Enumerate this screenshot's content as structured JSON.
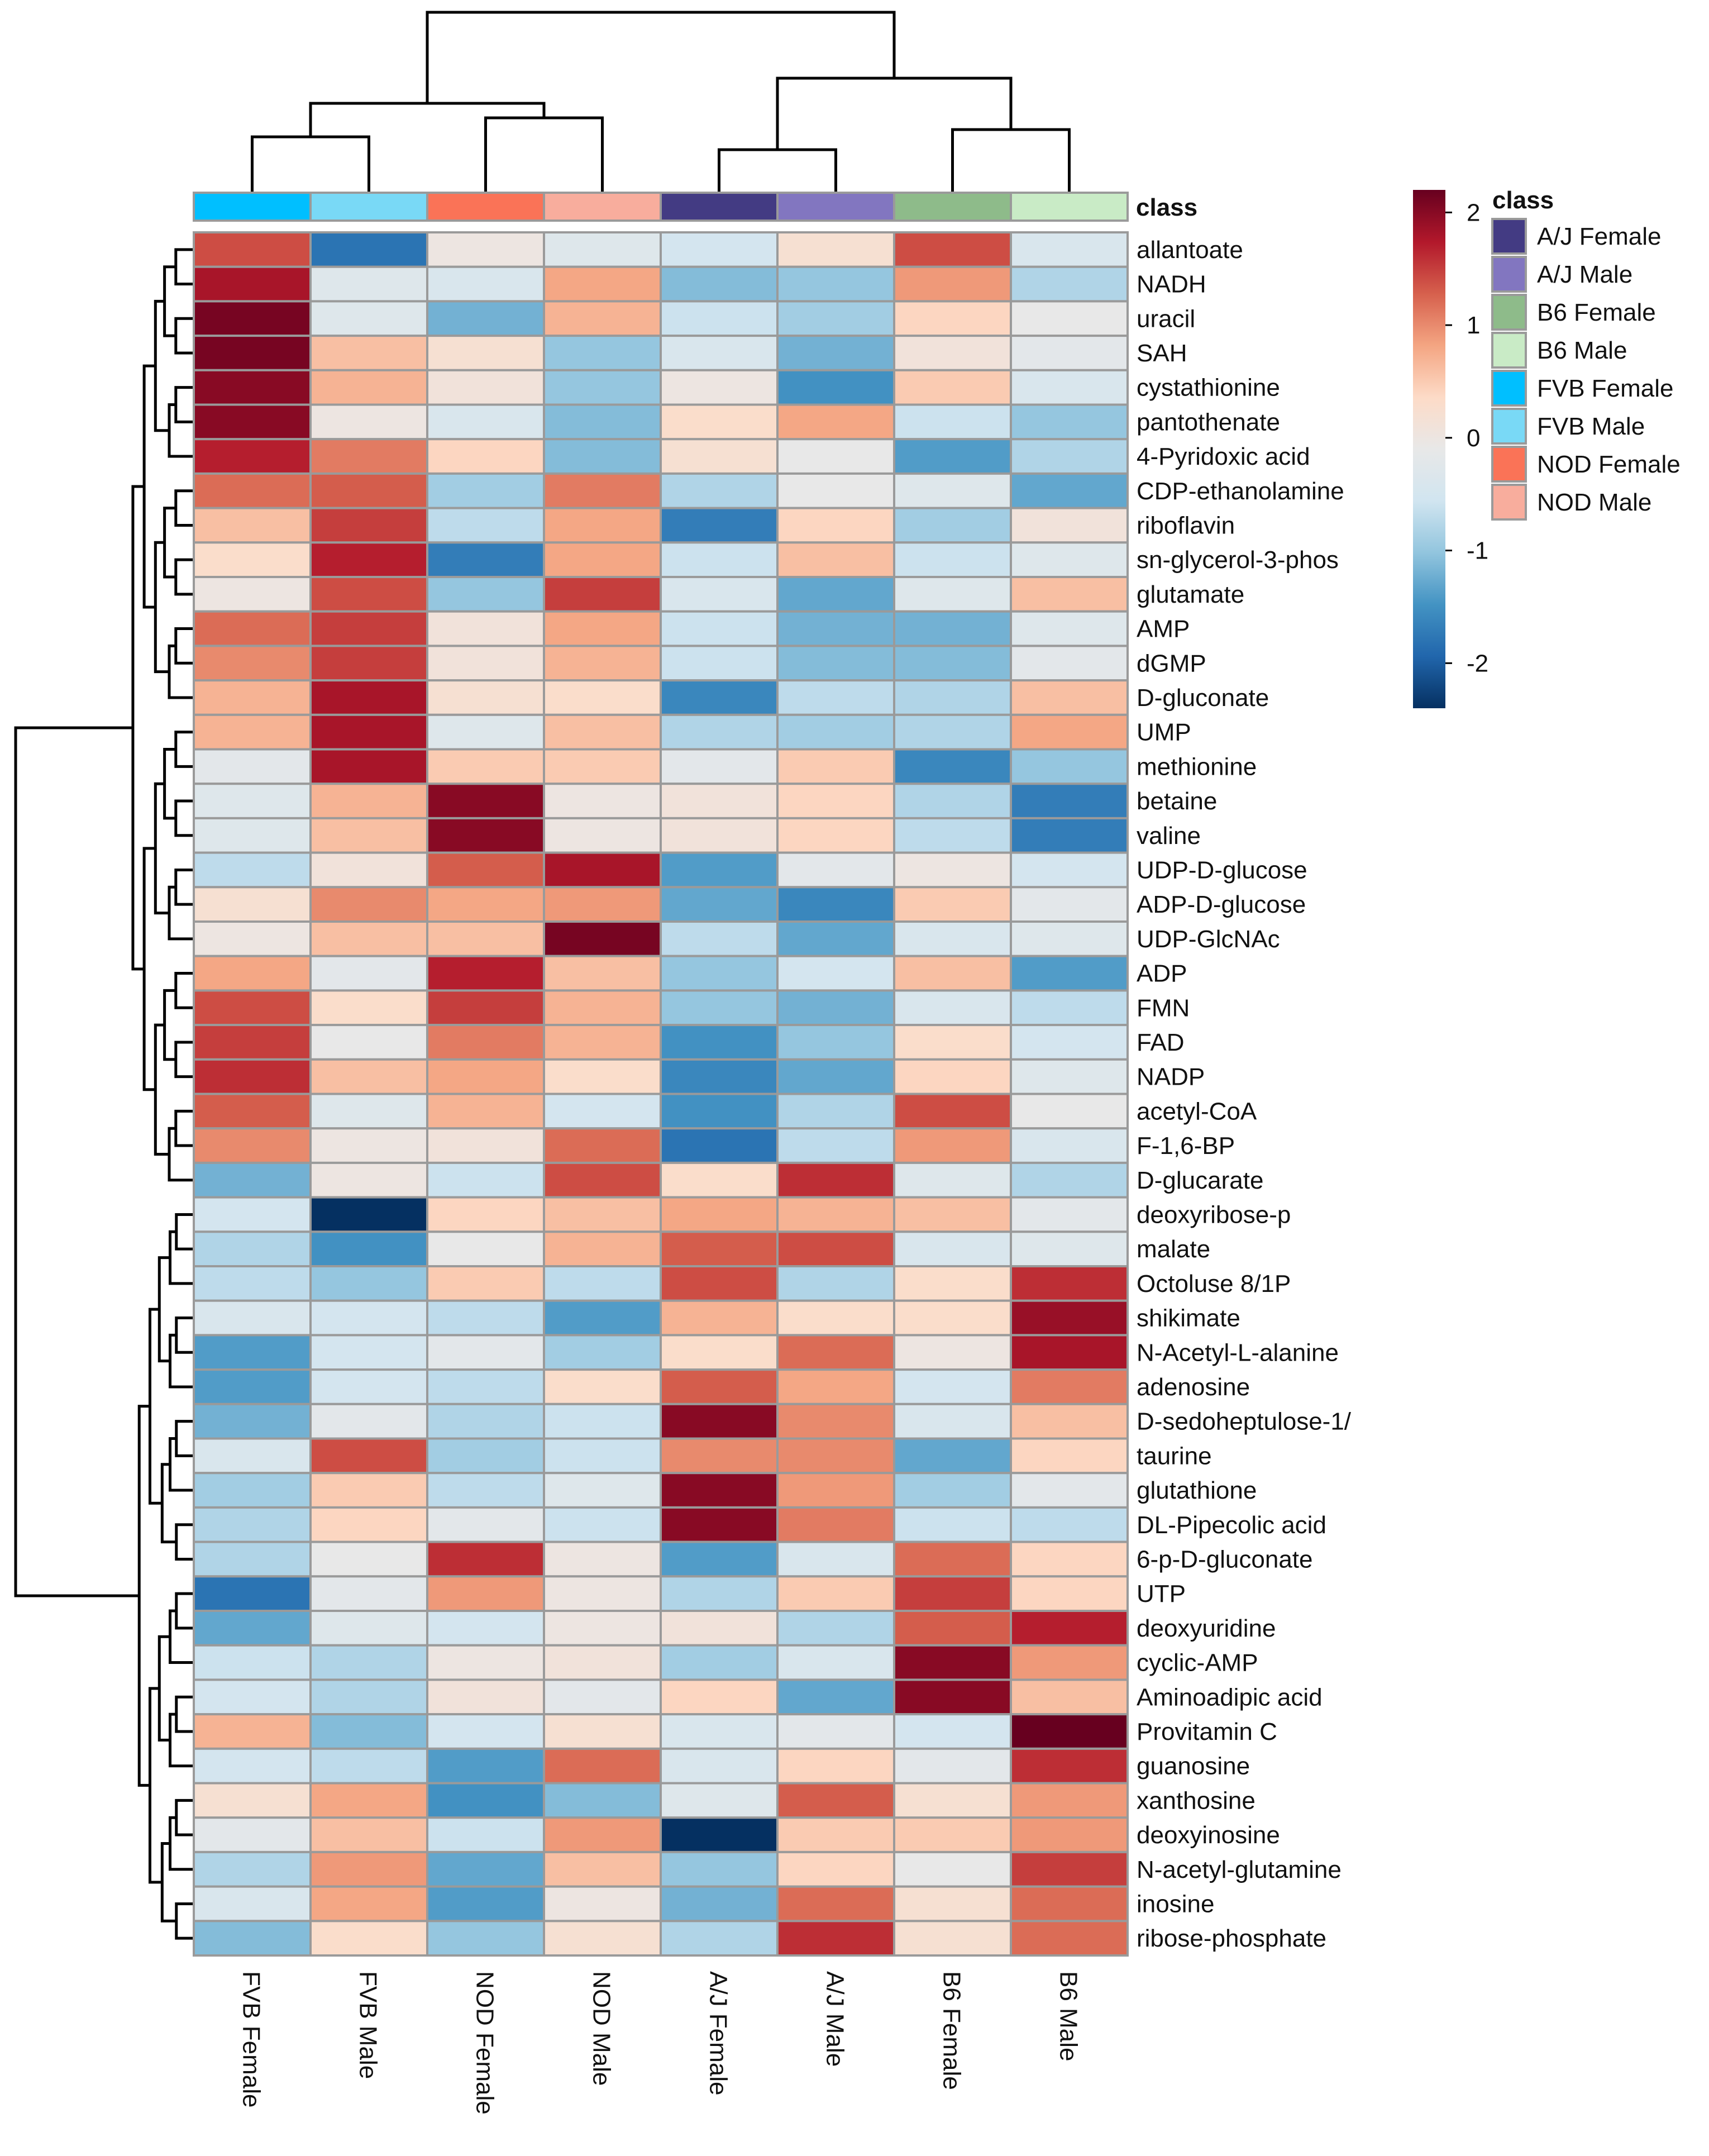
{
  "chart_data": {
    "type": "heatmap",
    "title": "",
    "legend_title": "class",
    "colorbar": {
      "range": [
        -2.4,
        2.2
      ],
      "ticks": [
        2,
        1,
        0,
        -1,
        -2
      ],
      "tick_labels": [
        "2",
        "1",
        "0",
        "-1",
        "-2"
      ],
      "stops": [
        "#053061",
        "#2166ac",
        "#4393c3",
        "#92c5de",
        "#d1e5f0",
        "#e8e8e8",
        "#fddbc7",
        "#f4a582",
        "#d6604d",
        "#b2182b",
        "#67001f"
      ]
    },
    "columns": [
      "FVB Female",
      "FVB Male",
      "NOD Female",
      "NOD Male",
      "A/J Female",
      "A/J Male",
      "B6 Female",
      "B6 Male"
    ],
    "column_classes": [
      "FVB Female",
      "FVB Male",
      "NOD Female",
      "NOD Male",
      "A/J Female",
      "A/J Male",
      "B6 Female",
      "B6 Male"
    ],
    "class_legend": [
      {
        "label": "A/J Female",
        "color": "#433b83"
      },
      {
        "label": "A/J Male",
        "color": "#8276c0"
      },
      {
        "label": "B6 Female",
        "color": "#8ebb8a"
      },
      {
        "label": "B6 Male",
        "color": "#c9ebc6"
      },
      {
        "label": "FVB Female",
        "color": "#00bfff"
      },
      {
        "label": "FVB Male",
        "color": "#79d9f6"
      },
      {
        "label": "NOD Female",
        "color": "#fa7357"
      },
      {
        "label": "NOD Male",
        "color": "#f8ad9d"
      }
    ],
    "rows": [
      {
        "name": "allantoate",
        "values": [
          1.4,
          -1.8,
          0.0,
          -0.3,
          -0.5,
          0.2,
          1.4,
          -0.4
        ]
      },
      {
        "name": "NADH",
        "values": [
          1.8,
          -0.3,
          -0.4,
          0.8,
          -1.1,
          -1.0,
          0.9,
          -0.8
        ]
      },
      {
        "name": "uracil",
        "values": [
          2.1,
          -0.3,
          -1.2,
          0.7,
          -0.6,
          -0.9,
          0.4,
          -0.1
        ]
      },
      {
        "name": "SAH",
        "values": [
          2.1,
          0.6,
          0.2,
          -1.0,
          -0.4,
          -1.2,
          0.1,
          -0.2
        ]
      },
      {
        "name": "cystathionine",
        "values": [
          2.0,
          0.7,
          0.1,
          -1.0,
          0.0,
          -1.5,
          0.5,
          -0.4
        ]
      },
      {
        "name": "pantothenate",
        "values": [
          2.0,
          0.0,
          -0.4,
          -1.1,
          0.3,
          0.8,
          -0.6,
          -1.0
        ]
      },
      {
        "name": "4-Pyridoxic acid",
        "values": [
          1.7,
          1.1,
          0.4,
          -1.1,
          0.2,
          -0.1,
          -1.4,
          -0.8
        ]
      },
      {
        "name": "CDP-ethanolamine",
        "values": [
          1.2,
          1.3,
          -0.9,
          1.1,
          -0.8,
          -0.1,
          -0.3,
          -1.3
        ]
      },
      {
        "name": "riboflavin",
        "values": [
          0.6,
          1.5,
          -0.7,
          0.8,
          -1.7,
          0.4,
          -0.9,
          0.1
        ]
      },
      {
        "name": "sn-glycerol-3-phos",
        "values": [
          0.3,
          1.7,
          -1.7,
          0.8,
          -0.6,
          0.6,
          -0.6,
          -0.3
        ]
      },
      {
        "name": "glutamate",
        "values": [
          0.0,
          1.4,
          -1.0,
          1.5,
          -0.4,
          -1.3,
          -0.3,
          0.6
        ]
      },
      {
        "name": "AMP",
        "values": [
          1.2,
          1.5,
          0.1,
          0.8,
          -0.6,
          -1.2,
          -1.2,
          -0.3
        ]
      },
      {
        "name": "dGMP",
        "values": [
          1.0,
          1.5,
          0.1,
          0.7,
          -0.6,
          -1.1,
          -1.1,
          -0.2
        ]
      },
      {
        "name": "D-gluconate",
        "values": [
          0.7,
          1.8,
          0.2,
          0.3,
          -1.6,
          -0.7,
          -0.8,
          0.6
        ]
      },
      {
        "name": "UMP",
        "values": [
          0.7,
          1.8,
          -0.3,
          0.6,
          -0.8,
          -0.9,
          -0.8,
          0.8
        ]
      },
      {
        "name": "methionine",
        "values": [
          -0.2,
          1.8,
          0.5,
          0.5,
          -0.2,
          0.5,
          -1.6,
          -1.0
        ]
      },
      {
        "name": "betaine",
        "values": [
          -0.3,
          0.7,
          2.0,
          0.0,
          0.1,
          0.4,
          -0.8,
          -1.7
        ]
      },
      {
        "name": "valine",
        "values": [
          -0.3,
          0.6,
          2.0,
          0.0,
          0.1,
          0.4,
          -0.7,
          -1.7
        ]
      },
      {
        "name": "UDP-D-glucose",
        "values": [
          -0.7,
          0.1,
          1.3,
          1.8,
          -1.4,
          -0.2,
          0.0,
          -0.5
        ]
      },
      {
        "name": "ADP-D-glucose",
        "values": [
          0.2,
          1.0,
          0.8,
          0.9,
          -1.3,
          -1.6,
          0.5,
          -0.2
        ]
      },
      {
        "name": "UDP-GlcNAc",
        "values": [
          0.0,
          0.6,
          0.6,
          2.1,
          -0.7,
          -1.3,
          -0.4,
          -0.3
        ]
      },
      {
        "name": "ADP",
        "values": [
          0.8,
          -0.2,
          1.7,
          0.6,
          -1.0,
          -0.5,
          0.6,
          -1.4
        ]
      },
      {
        "name": "FMN",
        "values": [
          1.4,
          0.3,
          1.5,
          0.7,
          -1.0,
          -1.2,
          -0.4,
          -0.7
        ]
      },
      {
        "name": "FAD",
        "values": [
          1.5,
          -0.1,
          1.1,
          0.7,
          -1.5,
          -1.0,
          0.3,
          -0.5
        ]
      },
      {
        "name": "NADP",
        "values": [
          1.6,
          0.6,
          0.8,
          0.3,
          -1.6,
          -1.3,
          0.4,
          -0.3
        ]
      },
      {
        "name": "acetyl-CoA",
        "values": [
          1.3,
          -0.3,
          0.7,
          -0.5,
          -1.5,
          -0.8,
          1.4,
          -0.1
        ]
      },
      {
        "name": "F-1,6-BP",
        "values": [
          1.0,
          0.0,
          0.1,
          1.2,
          -1.8,
          -0.7,
          0.9,
          -0.4
        ]
      },
      {
        "name": "D-glucarate",
        "values": [
          -1.2,
          0.0,
          -0.6,
          1.4,
          0.3,
          1.6,
          -0.3,
          -0.8
        ]
      },
      {
        "name": "deoxyribose-p",
        "values": [
          -0.5,
          -2.4,
          0.4,
          0.6,
          0.8,
          0.7,
          0.6,
          -0.2
        ]
      },
      {
        "name": "malate",
        "values": [
          -0.8,
          -1.5,
          -0.1,
          0.7,
          1.3,
          1.4,
          -0.4,
          -0.3
        ]
      },
      {
        "name": "Octoluse 8/1P",
        "values": [
          -0.7,
          -1.0,
          0.5,
          -0.7,
          1.4,
          -0.8,
          0.3,
          1.6
        ]
      },
      {
        "name": "shikimate",
        "values": [
          -0.4,
          -0.5,
          -0.7,
          -1.4,
          0.7,
          0.3,
          0.3,
          1.9
        ]
      },
      {
        "name": "N-Acetyl-L-alanine",
        "values": [
          -1.4,
          -0.5,
          -0.2,
          -0.9,
          0.3,
          1.2,
          0.0,
          1.8
        ]
      },
      {
        "name": "adenosine",
        "values": [
          -1.4,
          -0.5,
          -0.7,
          0.3,
          1.3,
          0.8,
          -0.5,
          1.1
        ]
      },
      {
        "name": "D-sedoheptulose-1/",
        "values": [
          -1.2,
          -0.2,
          -0.8,
          -0.6,
          2.0,
          1.0,
          -0.4,
          0.6
        ]
      },
      {
        "name": "taurine",
        "values": [
          -0.4,
          1.4,
          -0.9,
          -0.6,
          1.0,
          1.0,
          -1.3,
          0.4
        ]
      },
      {
        "name": "glutathione",
        "values": [
          -0.9,
          0.5,
          -0.7,
          -0.3,
          2.0,
          0.9,
          -0.9,
          -0.2
        ]
      },
      {
        "name": "DL-Pipecolic acid",
        "values": [
          -0.8,
          0.4,
          -0.2,
          -0.6,
          2.0,
          1.1,
          -0.6,
          -0.7
        ]
      },
      {
        "name": "6-p-D-gluconate",
        "values": [
          -0.8,
          -0.1,
          1.6,
          0.0,
          -1.4,
          -0.4,
          1.2,
          0.4
        ]
      },
      {
        "name": "UTP",
        "values": [
          -1.8,
          -0.2,
          0.9,
          0.0,
          -0.8,
          0.5,
          1.5,
          0.4
        ]
      },
      {
        "name": "deoxyuridine",
        "values": [
          -1.3,
          -0.3,
          -0.5,
          0.0,
          0.1,
          -0.8,
          1.3,
          1.7
        ]
      },
      {
        "name": "cyclic-AMP",
        "values": [
          -0.6,
          -0.8,
          0.0,
          0.1,
          -0.9,
          -0.4,
          2.0,
          0.9
        ]
      },
      {
        "name": "Aminoadipic acid",
        "values": [
          -0.5,
          -0.8,
          0.1,
          -0.2,
          0.4,
          -1.3,
          2.0,
          0.6
        ]
      },
      {
        "name": "Provitamin C",
        "values": [
          0.7,
          -1.1,
          -0.5,
          0.2,
          -0.4,
          -0.2,
          -0.5,
          2.2
        ]
      },
      {
        "name": "guanosine",
        "values": [
          -0.5,
          -0.7,
          -1.4,
          1.2,
          -0.4,
          0.4,
          -0.2,
          1.6
        ]
      },
      {
        "name": "xanthosine",
        "values": [
          0.2,
          0.8,
          -1.5,
          -1.1,
          -0.3,
          1.3,
          0.2,
          0.9
        ]
      },
      {
        "name": "deoxyinosine",
        "values": [
          -0.2,
          0.6,
          -0.6,
          0.9,
          -2.4,
          0.5,
          0.5,
          0.9
        ]
      },
      {
        "name": "N-acetyl-glutamine",
        "values": [
          -0.8,
          0.9,
          -1.3,
          0.6,
          -1.0,
          0.4,
          -0.1,
          1.5
        ]
      },
      {
        "name": "inosine",
        "values": [
          -0.4,
          0.8,
          -1.4,
          0.0,
          -1.2,
          1.2,
          0.2,
          1.2
        ]
      },
      {
        "name": "ribose-phosphate",
        "values": [
          -1.1,
          0.3,
          -1.0,
          0.2,
          -0.8,
          1.6,
          0.2,
          1.2
        ]
      }
    ]
  }
}
